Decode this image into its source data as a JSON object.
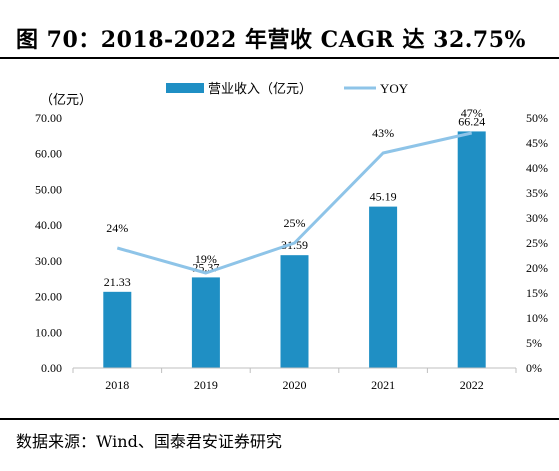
{
  "figure": {
    "title": "图 70：2018-2022 年营收 CAGR 达 32.75%",
    "source": "数据来源：Wind、国泰君安证券研究"
  },
  "chart_data": {
    "type": "bar",
    "categories": [
      "2018",
      "2019",
      "2020",
      "2021",
      "2022"
    ],
    "y_unit_label": "（亿元）",
    "ylim": [
      0,
      70
    ],
    "yticks": [
      "0.00",
      "10.00",
      "20.00",
      "30.00",
      "40.00",
      "50.00",
      "60.00",
      "70.00"
    ],
    "y2lim": [
      0,
      50
    ],
    "y2ticks": [
      "0%",
      "5%",
      "10%",
      "15%",
      "20%",
      "25%",
      "30%",
      "35%",
      "40%",
      "45%",
      "50%"
    ],
    "legend_position": "top",
    "grid": false,
    "series": [
      {
        "name": "营业收入（亿元）",
        "type": "bar",
        "axis": "left",
        "color": "#1f8fc4",
        "values": [
          21.33,
          25.37,
          31.59,
          45.19,
          66.24
        ],
        "labels": [
          "21.33",
          "25.37",
          "31.59",
          "45.19",
          "66.24"
        ]
      },
      {
        "name": "YOY",
        "type": "line",
        "axis": "right",
        "color": "#8ec4e8",
        "values": [
          24,
          19,
          25,
          43,
          47
        ],
        "labels": [
          "24%",
          "19%",
          "25%",
          "43%",
          "47%"
        ]
      }
    ]
  }
}
